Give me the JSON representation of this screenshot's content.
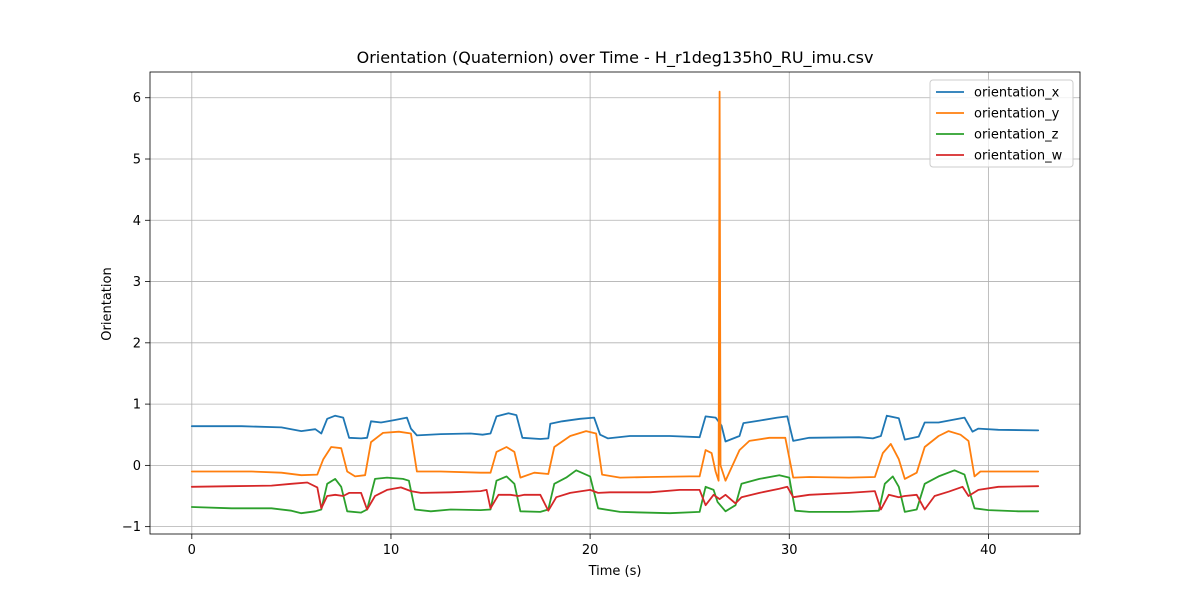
{
  "chart_data": {
    "type": "line",
    "title": "Orientation (Quaternion) over Time - H_r1deg135h0_RU_imu.csv",
    "xlabel": "Time (s)",
    "ylabel": "Orientation",
    "xlim": [
      -2.1,
      44.6
    ],
    "ylim": [
      -1.12,
      6.42
    ],
    "xticks": [
      0,
      10,
      20,
      30,
      40
    ],
    "yticks": [
      -1,
      0,
      1,
      2,
      3,
      4,
      5,
      6
    ],
    "grid": true,
    "legend_position": "top-right",
    "series": [
      {
        "name": "orientation_x",
        "color": "#1f77b4",
        "points": [
          [
            0,
            0.64
          ],
          [
            2.5,
            0.64
          ],
          [
            4.5,
            0.62
          ],
          [
            5.5,
            0.56
          ],
          [
            6.2,
            0.59
          ],
          [
            6.5,
            0.52
          ],
          [
            6.8,
            0.76
          ],
          [
            7.2,
            0.81
          ],
          [
            7.6,
            0.78
          ],
          [
            7.9,
            0.45
          ],
          [
            8.5,
            0.44
          ],
          [
            8.8,
            0.45
          ],
          [
            9.0,
            0.72
          ],
          [
            9.5,
            0.7
          ],
          [
            10.2,
            0.74
          ],
          [
            10.8,
            0.78
          ],
          [
            11.0,
            0.6
          ],
          [
            11.3,
            0.49
          ],
          [
            12.5,
            0.51
          ],
          [
            14.0,
            0.52
          ],
          [
            14.6,
            0.5
          ],
          [
            15.0,
            0.52
          ],
          [
            15.3,
            0.8
          ],
          [
            15.9,
            0.85
          ],
          [
            16.3,
            0.82
          ],
          [
            16.6,
            0.45
          ],
          [
            17.5,
            0.43
          ],
          [
            17.9,
            0.44
          ],
          [
            18.0,
            0.68
          ],
          [
            18.6,
            0.72
          ],
          [
            19.5,
            0.76
          ],
          [
            20.2,
            0.78
          ],
          [
            20.5,
            0.5
          ],
          [
            20.9,
            0.44
          ],
          [
            22.0,
            0.48
          ],
          [
            24.0,
            0.48
          ],
          [
            25.5,
            0.46
          ],
          [
            25.8,
            0.8
          ],
          [
            26.3,
            0.78
          ],
          [
            26.6,
            0.65
          ],
          [
            26.8,
            0.39
          ],
          [
            27.5,
            0.48
          ],
          [
            27.7,
            0.69
          ],
          [
            28.5,
            0.73
          ],
          [
            29.4,
            0.78
          ],
          [
            29.9,
            0.8
          ],
          [
            30.2,
            0.4
          ],
          [
            31.0,
            0.45
          ],
          [
            33.5,
            0.46
          ],
          [
            34.2,
            0.44
          ],
          [
            34.6,
            0.48
          ],
          [
            34.9,
            0.81
          ],
          [
            35.5,
            0.77
          ],
          [
            35.8,
            0.42
          ],
          [
            36.5,
            0.47
          ],
          [
            36.8,
            0.7
          ],
          [
            37.5,
            0.7
          ],
          [
            38.5,
            0.76
          ],
          [
            38.8,
            0.78
          ],
          [
            39.2,
            0.55
          ],
          [
            39.5,
            0.6
          ],
          [
            40.5,
            0.58
          ],
          [
            42.5,
            0.57
          ]
        ]
      },
      {
        "name": "orientation_y",
        "color": "#ff7f0e",
        "points": [
          [
            0,
            -0.1
          ],
          [
            3.0,
            -0.1
          ],
          [
            4.5,
            -0.12
          ],
          [
            5.5,
            -0.16
          ],
          [
            6.3,
            -0.15
          ],
          [
            6.6,
            0.1
          ],
          [
            7.0,
            0.3
          ],
          [
            7.5,
            0.28
          ],
          [
            7.8,
            -0.1
          ],
          [
            8.2,
            -0.18
          ],
          [
            8.7,
            -0.16
          ],
          [
            9.0,
            0.38
          ],
          [
            9.6,
            0.53
          ],
          [
            10.4,
            0.55
          ],
          [
            11.0,
            0.52
          ],
          [
            11.3,
            -0.1
          ],
          [
            12.5,
            -0.1
          ],
          [
            14.5,
            -0.12
          ],
          [
            15.0,
            -0.12
          ],
          [
            15.3,
            0.22
          ],
          [
            15.8,
            0.3
          ],
          [
            16.2,
            0.22
          ],
          [
            16.5,
            -0.2
          ],
          [
            17.2,
            -0.12
          ],
          [
            17.9,
            -0.14
          ],
          [
            18.2,
            0.3
          ],
          [
            19.0,
            0.48
          ],
          [
            19.8,
            0.56
          ],
          [
            20.3,
            0.52
          ],
          [
            20.6,
            -0.15
          ],
          [
            21.5,
            -0.2
          ],
          [
            23.0,
            -0.19
          ],
          [
            25.0,
            -0.18
          ],
          [
            25.5,
            -0.18
          ],
          [
            25.8,
            0.25
          ],
          [
            26.1,
            0.2
          ],
          [
            26.3,
            -0.1
          ],
          [
            26.45,
            -0.25
          ],
          [
            26.5,
            6.1
          ],
          [
            26.55,
            0.0
          ],
          [
            26.8,
            -0.25
          ],
          [
            27.5,
            0.25
          ],
          [
            28.0,
            0.4
          ],
          [
            29.0,
            0.45
          ],
          [
            29.8,
            0.45
          ],
          [
            30.2,
            -0.2
          ],
          [
            31.0,
            -0.19
          ],
          [
            33.0,
            -0.2
          ],
          [
            34.3,
            -0.19
          ],
          [
            34.7,
            0.2
          ],
          [
            35.1,
            0.35
          ],
          [
            35.5,
            0.1
          ],
          [
            35.8,
            -0.22
          ],
          [
            36.4,
            -0.12
          ],
          [
            36.8,
            0.3
          ],
          [
            37.5,
            0.48
          ],
          [
            38.0,
            0.56
          ],
          [
            38.6,
            0.5
          ],
          [
            39.0,
            0.4
          ],
          [
            39.3,
            -0.18
          ],
          [
            39.6,
            -0.1
          ],
          [
            40.5,
            -0.1
          ],
          [
            42.5,
            -0.1
          ]
        ]
      },
      {
        "name": "orientation_z",
        "color": "#2ca02c",
        "points": [
          [
            0,
            -0.68
          ],
          [
            2.0,
            -0.7
          ],
          [
            4.0,
            -0.7
          ],
          [
            5.0,
            -0.74
          ],
          [
            5.5,
            -0.78
          ],
          [
            6.2,
            -0.75
          ],
          [
            6.5,
            -0.72
          ],
          [
            6.8,
            -0.3
          ],
          [
            7.2,
            -0.22
          ],
          [
            7.5,
            -0.35
          ],
          [
            7.8,
            -0.75
          ],
          [
            8.5,
            -0.77
          ],
          [
            8.8,
            -0.72
          ],
          [
            9.2,
            -0.22
          ],
          [
            9.8,
            -0.2
          ],
          [
            10.6,
            -0.22
          ],
          [
            10.9,
            -0.25
          ],
          [
            11.2,
            -0.72
          ],
          [
            12.0,
            -0.75
          ],
          [
            13.0,
            -0.72
          ],
          [
            14.5,
            -0.73
          ],
          [
            15.0,
            -0.72
          ],
          [
            15.3,
            -0.25
          ],
          [
            15.8,
            -0.18
          ],
          [
            16.2,
            -0.3
          ],
          [
            16.5,
            -0.75
          ],
          [
            17.5,
            -0.76
          ],
          [
            17.9,
            -0.72
          ],
          [
            18.2,
            -0.3
          ],
          [
            18.8,
            -0.2
          ],
          [
            19.3,
            -0.08
          ],
          [
            20.0,
            -0.18
          ],
          [
            20.4,
            -0.7
          ],
          [
            21.5,
            -0.76
          ],
          [
            24.0,
            -0.78
          ],
          [
            25.5,
            -0.76
          ],
          [
            25.8,
            -0.35
          ],
          [
            26.2,
            -0.4
          ],
          [
            26.4,
            -0.6
          ],
          [
            26.8,
            -0.75
          ],
          [
            27.3,
            -0.65
          ],
          [
            27.6,
            -0.3
          ],
          [
            28.5,
            -0.22
          ],
          [
            29.5,
            -0.16
          ],
          [
            30.0,
            -0.2
          ],
          [
            30.3,
            -0.74
          ],
          [
            31.0,
            -0.76
          ],
          [
            33.0,
            -0.76
          ],
          [
            34.5,
            -0.74
          ],
          [
            34.8,
            -0.3
          ],
          [
            35.2,
            -0.18
          ],
          [
            35.5,
            -0.35
          ],
          [
            35.8,
            -0.76
          ],
          [
            36.4,
            -0.72
          ],
          [
            36.8,
            -0.3
          ],
          [
            37.5,
            -0.18
          ],
          [
            38.3,
            -0.08
          ],
          [
            38.8,
            -0.15
          ],
          [
            39.3,
            -0.7
          ],
          [
            40.0,
            -0.73
          ],
          [
            41.5,
            -0.75
          ],
          [
            42.5,
            -0.75
          ]
        ]
      },
      {
        "name": "orientation_w",
        "color": "#d62728",
        "points": [
          [
            0,
            -0.35
          ],
          [
            2.0,
            -0.34
          ],
          [
            4.0,
            -0.33
          ],
          [
            5.0,
            -0.3
          ],
          [
            5.8,
            -0.28
          ],
          [
            6.3,
            -0.36
          ],
          [
            6.5,
            -0.7
          ],
          [
            6.8,
            -0.5
          ],
          [
            7.2,
            -0.48
          ],
          [
            7.6,
            -0.5
          ],
          [
            7.9,
            -0.45
          ],
          [
            8.5,
            -0.45
          ],
          [
            8.8,
            -0.72
          ],
          [
            9.2,
            -0.5
          ],
          [
            9.8,
            -0.4
          ],
          [
            10.5,
            -0.36
          ],
          [
            11.0,
            -0.42
          ],
          [
            11.5,
            -0.45
          ],
          [
            13.0,
            -0.44
          ],
          [
            14.5,
            -0.42
          ],
          [
            14.8,
            -0.4
          ],
          [
            15.0,
            -0.7
          ],
          [
            15.4,
            -0.48
          ],
          [
            16.0,
            -0.48
          ],
          [
            16.4,
            -0.5
          ],
          [
            16.7,
            -0.48
          ],
          [
            17.5,
            -0.48
          ],
          [
            17.9,
            -0.74
          ],
          [
            18.3,
            -0.52
          ],
          [
            19.0,
            -0.45
          ],
          [
            20.0,
            -0.4
          ],
          [
            20.4,
            -0.45
          ],
          [
            21.0,
            -0.44
          ],
          [
            23.0,
            -0.44
          ],
          [
            24.5,
            -0.4
          ],
          [
            25.5,
            -0.4
          ],
          [
            25.8,
            -0.65
          ],
          [
            26.2,
            -0.48
          ],
          [
            26.5,
            -0.55
          ],
          [
            26.8,
            -0.48
          ],
          [
            27.3,
            -0.62
          ],
          [
            27.6,
            -0.52
          ],
          [
            28.5,
            -0.45
          ],
          [
            29.5,
            -0.38
          ],
          [
            29.9,
            -0.35
          ],
          [
            30.2,
            -0.52
          ],
          [
            31.0,
            -0.48
          ],
          [
            33.0,
            -0.45
          ],
          [
            34.3,
            -0.42
          ],
          [
            34.6,
            -0.72
          ],
          [
            35.0,
            -0.48
          ],
          [
            35.5,
            -0.52
          ],
          [
            35.8,
            -0.5
          ],
          [
            36.4,
            -0.48
          ],
          [
            36.8,
            -0.72
          ],
          [
            37.3,
            -0.5
          ],
          [
            38.0,
            -0.43
          ],
          [
            38.7,
            -0.35
          ],
          [
            39.0,
            -0.5
          ],
          [
            39.5,
            -0.4
          ],
          [
            40.5,
            -0.35
          ],
          [
            42.5,
            -0.34
          ]
        ]
      }
    ]
  }
}
